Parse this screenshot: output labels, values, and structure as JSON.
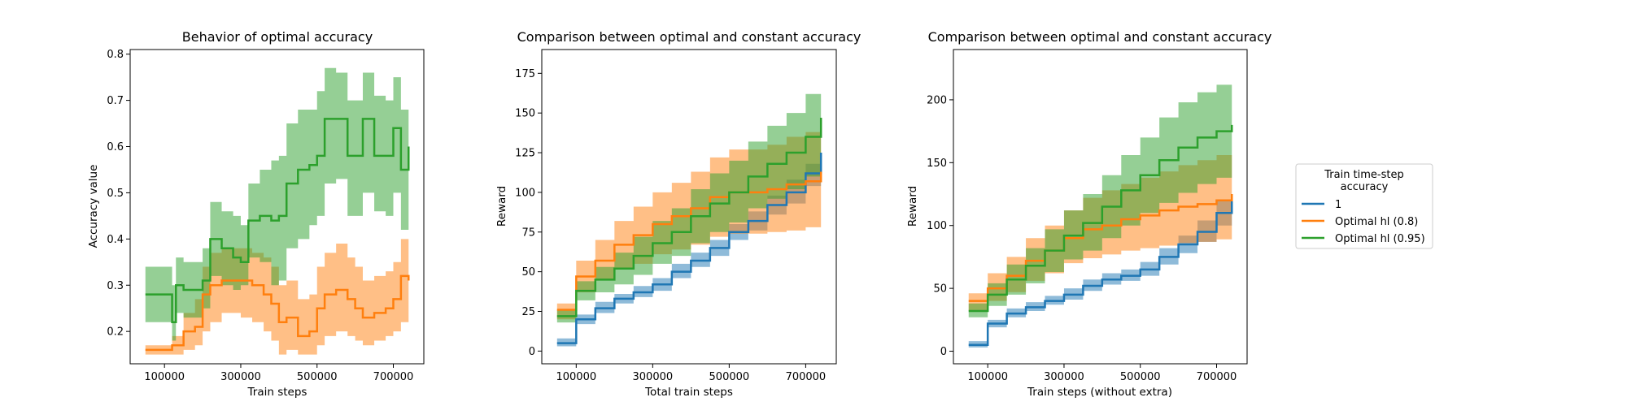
{
  "colors": {
    "series1": "#1f77b4",
    "series2": "#ff7f0e",
    "series3": "#2ca02c"
  },
  "legend": {
    "title_line1": "Train time-step",
    "title_line2": "accuracy",
    "placement": "center-right outside",
    "items": [
      "1",
      "Optimal hl (0.8)",
      "Optimal hl (0.95)"
    ]
  },
  "chart_data": [
    {
      "type": "line",
      "title": "Behavior of optimal accuracy",
      "xlabel": "Train steps",
      "ylabel": "Accuracy value",
      "xlim": [
        10000,
        780000
      ],
      "ylim": [
        0.13,
        0.81
      ],
      "xticks": [
        100000,
        300000,
        500000,
        700000
      ],
      "xtick_labels": [
        "100000",
        "300000",
        "500000",
        "700000"
      ],
      "yticks": [
        0.2,
        0.3,
        0.4,
        0.5,
        0.6,
        0.7,
        0.8
      ],
      "ytick_labels": [
        "0.2",
        "0.3",
        "0.4",
        "0.5",
        "0.6",
        "0.7",
        "0.8"
      ],
      "grid": false,
      "series": [
        {
          "name": "Optimal hl (0.8)",
          "color": "series2",
          "x": [
            50000,
            100000,
            120000,
            150000,
            180000,
            200000,
            220000,
            250000,
            280000,
            300000,
            330000,
            360000,
            380000,
            400000,
            420000,
            450000,
            480000,
            500000,
            520000,
            550000,
            580000,
            600000,
            620000,
            650000,
            680000,
            700000,
            720000,
            740000
          ],
          "y": [
            0.16,
            0.16,
            0.17,
            0.2,
            0.21,
            0.28,
            0.3,
            0.31,
            0.31,
            0.31,
            0.3,
            0.28,
            0.26,
            0.22,
            0.23,
            0.19,
            0.2,
            0.25,
            0.28,
            0.29,
            0.27,
            0.25,
            0.23,
            0.24,
            0.25,
            0.27,
            0.32,
            0.31
          ],
          "lower": [
            0.15,
            0.15,
            0.15,
            0.16,
            0.17,
            0.2,
            0.22,
            0.24,
            0.24,
            0.23,
            0.22,
            0.2,
            0.18,
            0.15,
            0.16,
            0.15,
            0.15,
            0.17,
            0.19,
            0.2,
            0.19,
            0.18,
            0.17,
            0.18,
            0.19,
            0.2,
            0.22,
            0.23
          ],
          "upper": [
            0.17,
            0.17,
            0.19,
            0.24,
            0.27,
            0.34,
            0.37,
            0.38,
            0.38,
            0.38,
            0.37,
            0.36,
            0.34,
            0.3,
            0.31,
            0.27,
            0.28,
            0.34,
            0.37,
            0.39,
            0.36,
            0.34,
            0.31,
            0.32,
            0.33,
            0.35,
            0.4,
            0.39
          ]
        },
        {
          "name": "Optimal hl (0.95)",
          "color": "series3",
          "x": [
            50000,
            80000,
            100000,
            120000,
            130000,
            150000,
            180000,
            200000,
            220000,
            250000,
            280000,
            300000,
            320000,
            350000,
            380000,
            400000,
            420000,
            450000,
            480000,
            500000,
            520000,
            550000,
            580000,
            600000,
            620000,
            650000,
            680000,
            700000,
            720000,
            740000
          ],
          "y": [
            0.28,
            0.28,
            0.28,
            0.22,
            0.3,
            0.29,
            0.29,
            0.31,
            0.4,
            0.38,
            0.36,
            0.35,
            0.44,
            0.45,
            0.44,
            0.45,
            0.52,
            0.55,
            0.56,
            0.58,
            0.66,
            0.66,
            0.58,
            0.58,
            0.66,
            0.58,
            0.58,
            0.64,
            0.55,
            0.6
          ],
          "lower": [
            0.22,
            0.22,
            0.22,
            0.18,
            0.24,
            0.23,
            0.23,
            0.25,
            0.32,
            0.3,
            0.29,
            0.3,
            0.36,
            0.35,
            0.3,
            0.31,
            0.38,
            0.4,
            0.43,
            0.45,
            0.52,
            0.53,
            0.45,
            0.45,
            0.5,
            0.46,
            0.45,
            0.5,
            0.42,
            0.47
          ],
          "upper": [
            0.34,
            0.34,
            0.34,
            0.3,
            0.36,
            0.35,
            0.35,
            0.38,
            0.48,
            0.46,
            0.45,
            0.43,
            0.52,
            0.55,
            0.57,
            0.58,
            0.65,
            0.68,
            0.68,
            0.72,
            0.77,
            0.76,
            0.7,
            0.7,
            0.76,
            0.71,
            0.7,
            0.75,
            0.68,
            0.72
          ]
        }
      ]
    },
    {
      "type": "line",
      "title": "Comparison between optimal and constant accuracy",
      "xlabel": "Total train steps",
      "ylabel": "Reward",
      "xlim": [
        10000,
        780000
      ],
      "ylim": [
        -8,
        190
      ],
      "xticks": [
        100000,
        300000,
        500000,
        700000
      ],
      "xtick_labels": [
        "100000",
        "300000",
        "500000",
        "700000"
      ],
      "yticks": [
        0,
        25,
        50,
        75,
        100,
        125,
        150,
        175
      ],
      "ytick_labels": [
        "0",
        "25",
        "50",
        "75",
        "100",
        "125",
        "150",
        "175"
      ],
      "grid": false,
      "series": [
        {
          "name": "1",
          "color": "series1",
          "x": [
            50000,
            100000,
            150000,
            200000,
            250000,
            300000,
            350000,
            400000,
            450000,
            500000,
            550000,
            600000,
            650000,
            700000,
            740000
          ],
          "y": [
            5,
            20,
            27,
            33,
            37,
            42,
            50,
            57,
            65,
            75,
            82,
            92,
            100,
            112,
            125
          ],
          "lower": [
            3,
            17,
            24,
            30,
            34,
            38,
            46,
            53,
            60,
            70,
            76,
            86,
            93,
            104,
            115
          ],
          "upper": [
            8,
            23,
            31,
            36,
            41,
            46,
            55,
            62,
            70,
            80,
            88,
            98,
            108,
            118,
            133
          ]
        },
        {
          "name": "Optimal hl (0.8)",
          "color": "series2",
          "x": [
            50000,
            100000,
            150000,
            200000,
            250000,
            300000,
            350000,
            400000,
            450000,
            500000,
            550000,
            600000,
            650000,
            700000,
            740000
          ],
          "y": [
            26,
            47,
            57,
            67,
            73,
            80,
            85,
            90,
            97,
            100,
            100,
            102,
            105,
            107,
            113
          ],
          "lower": [
            20,
            37,
            45,
            52,
            55,
            61,
            64,
            67,
            72,
            74,
            74,
            75,
            76,
            78,
            80
          ],
          "upper": [
            30,
            57,
            70,
            82,
            91,
            100,
            106,
            113,
            122,
            127,
            127,
            130,
            135,
            138,
            146
          ]
        },
        {
          "name": "Optimal hl (0.95)",
          "color": "series3",
          "x": [
            50000,
            100000,
            150000,
            200000,
            250000,
            300000,
            350000,
            400000,
            450000,
            500000,
            550000,
            600000,
            650000,
            700000,
            740000
          ],
          "y": [
            22,
            38,
            45,
            52,
            60,
            68,
            75,
            85,
            93,
            100,
            110,
            118,
            125,
            135,
            147
          ],
          "lower": [
            18,
            32,
            37,
            42,
            48,
            55,
            60,
            68,
            75,
            81,
            90,
            96,
            102,
            110,
            120
          ],
          "upper": [
            26,
            44,
            53,
            62,
            72,
            82,
            90,
            102,
            112,
            120,
            132,
            142,
            150,
            162,
            180
          ]
        }
      ]
    },
    {
      "type": "line",
      "title": "Comparison between optimal and constant accuracy",
      "xlabel": "Train steps (without extra)",
      "ylabel": "Reward",
      "xlim": [
        10000,
        780000
      ],
      "ylim": [
        -10,
        240
      ],
      "xticks": [
        100000,
        300000,
        500000,
        700000
      ],
      "xtick_labels": [
        "100000",
        "300000",
        "500000",
        "700000"
      ],
      "yticks": [
        0,
        50,
        100,
        150,
        200
      ],
      "ytick_labels": [
        "0",
        "50",
        "100",
        "150",
        "200"
      ],
      "grid": false,
      "series": [
        {
          "name": "1",
          "color": "series1",
          "x": [
            50000,
            100000,
            150000,
            200000,
            250000,
            300000,
            350000,
            400000,
            450000,
            500000,
            550000,
            600000,
            650000,
            700000,
            740000
          ],
          "y": [
            5,
            22,
            30,
            35,
            40,
            45,
            52,
            57,
            60,
            65,
            75,
            85,
            95,
            110,
            125
          ],
          "lower": [
            3,
            19,
            27,
            32,
            37,
            41,
            48,
            53,
            56,
            60,
            69,
            78,
            87,
            100,
            112
          ],
          "upper": [
            8,
            25,
            34,
            39,
            44,
            50,
            57,
            62,
            65,
            71,
            82,
            92,
            104,
            120,
            138
          ]
        },
        {
          "name": "Optimal hl (0.8)",
          "color": "series2",
          "x": [
            50000,
            100000,
            150000,
            200000,
            250000,
            300000,
            350000,
            400000,
            450000,
            500000,
            550000,
            600000,
            650000,
            700000,
            740000
          ],
          "y": [
            40,
            50,
            60,
            72,
            80,
            90,
            97,
            100,
            105,
            108,
            112,
            115,
            117,
            120,
            125
          ],
          "lower": [
            32,
            40,
            47,
            56,
            62,
            70,
            74,
            77,
            80,
            82,
            84,
            86,
            87,
            89,
            92
          ],
          "upper": [
            46,
            62,
            75,
            90,
            100,
            112,
            122,
            128,
            133,
            138,
            143,
            148,
            152,
            156,
            162
          ]
        },
        {
          "name": "Optimal hl (0.95)",
          "color": "series3",
          "x": [
            50000,
            100000,
            150000,
            200000,
            250000,
            300000,
            350000,
            400000,
            450000,
            500000,
            550000,
            600000,
            650000,
            700000,
            740000
          ],
          "y": [
            32,
            45,
            57,
            68,
            80,
            92,
            102,
            115,
            128,
            140,
            152,
            162,
            170,
            175,
            180
          ],
          "lower": [
            27,
            36,
            45,
            54,
            63,
            73,
            80,
            90,
            100,
            110,
            118,
            126,
            133,
            138,
            142
          ],
          "upper": [
            38,
            54,
            69,
            82,
            97,
            112,
            125,
            140,
            156,
            170,
            186,
            198,
            206,
            212,
            218
          ]
        }
      ]
    }
  ]
}
